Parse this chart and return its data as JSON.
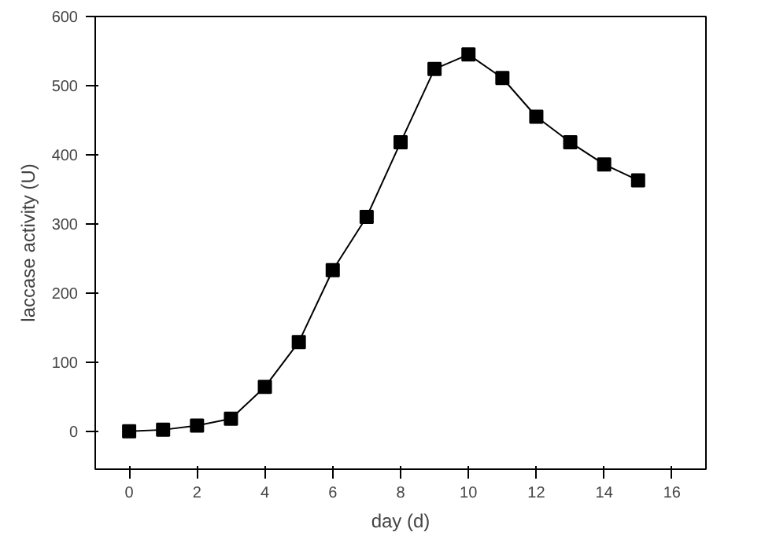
{
  "chart_data": {
    "type": "line",
    "xlabel": "day (d)",
    "ylabel": "laccase activity (U)",
    "x": [
      0,
      1,
      2,
      3,
      4,
      5,
      6,
      7,
      8,
      9,
      10,
      11,
      12,
      13,
      14,
      15
    ],
    "series": [
      {
        "color": "#000000",
        "values": [
          0,
          2,
          8,
          18,
          64,
          129,
          233,
          310,
          418,
          524,
          545,
          511,
          455,
          418,
          386,
          363
        ]
      }
    ],
    "xlim": [
      -1,
      17
    ],
    "ylim": [
      -55,
      600
    ],
    "xticks": [
      0,
      2,
      4,
      6,
      8,
      10,
      12,
      14,
      16
    ],
    "yticks": [
      0,
      100,
      200,
      300,
      400,
      500,
      600
    ],
    "marker": "square",
    "line_style": "solid",
    "grid": false
  }
}
